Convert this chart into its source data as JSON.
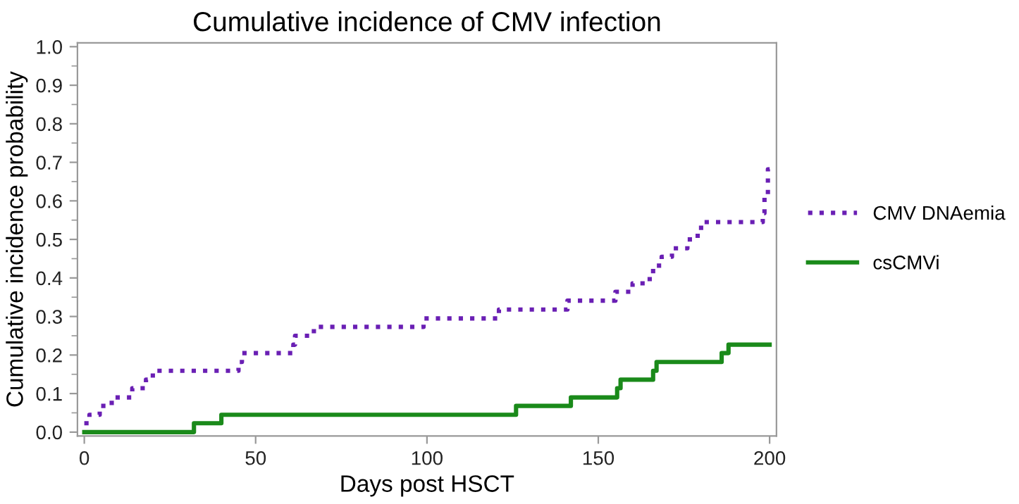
{
  "chart_data": {
    "type": "step",
    "title": "Cumulative incidence of CMV infection",
    "xlabel": "Days post HSCT",
    "ylabel": "Cumulative incidence probability",
    "xlim": [
      -2,
      202
    ],
    "ylim": [
      -0.01,
      1.01
    ],
    "xticks": [
      0,
      50,
      100,
      150,
      200
    ],
    "yticks": [
      {
        "value": 0,
        "label": "0.0"
      },
      {
        "value": 0.1,
        "label": "0.1"
      },
      {
        "value": 0.2,
        "label": "0.2"
      },
      {
        "value": 0.3,
        "label": "0.3"
      },
      {
        "value": 0.4,
        "label": "0.4"
      },
      {
        "value": 0.5,
        "label": "0.5"
      },
      {
        "value": 0.6,
        "label": "0.6"
      },
      {
        "value": 0.7,
        "label": "0.7"
      },
      {
        "value": 0.8,
        "label": "0.8"
      },
      {
        "value": 0.9,
        "label": "0.9"
      },
      {
        "value": 1,
        "label": "1.0"
      }
    ],
    "legend": "right",
    "grid": false,
    "series": [
      {
        "name": "CMV DNAemia",
        "color": "#6a1fb4",
        "line_style": "dotted",
        "x": [
          0,
          1.5,
          4.5,
          8,
          14,
          18,
          20,
          45,
          46,
          61,
          61.5,
          67,
          99,
          121,
          141,
          155,
          160,
          165,
          166,
          168.5,
          171.5,
          176,
          179,
          180,
          198,
          198.5,
          199.5,
          200
        ],
        "values": [
          0.023,
          0.045,
          0.068,
          0.09,
          0.114,
          0.136,
          0.159,
          0.182,
          0.205,
          0.227,
          0.25,
          0.273,
          0.295,
          0.318,
          0.341,
          0.364,
          0.386,
          0.409,
          0.432,
          0.455,
          0.477,
          0.5,
          0.523,
          0.545,
          0.568,
          0.614,
          0.682,
          0.682
        ]
      },
      {
        "name": "csCMVi",
        "color": "#1a8a1a",
        "line_style": "solid",
        "x": [
          0,
          32,
          40,
          126,
          142,
          155.5,
          156.5,
          166,
          167,
          186,
          188,
          200
        ],
        "values": [
          0,
          0.023,
          0.045,
          0.068,
          0.09,
          0.114,
          0.136,
          0.159,
          0.182,
          0.205,
          0.227,
          0.227
        ]
      }
    ]
  }
}
